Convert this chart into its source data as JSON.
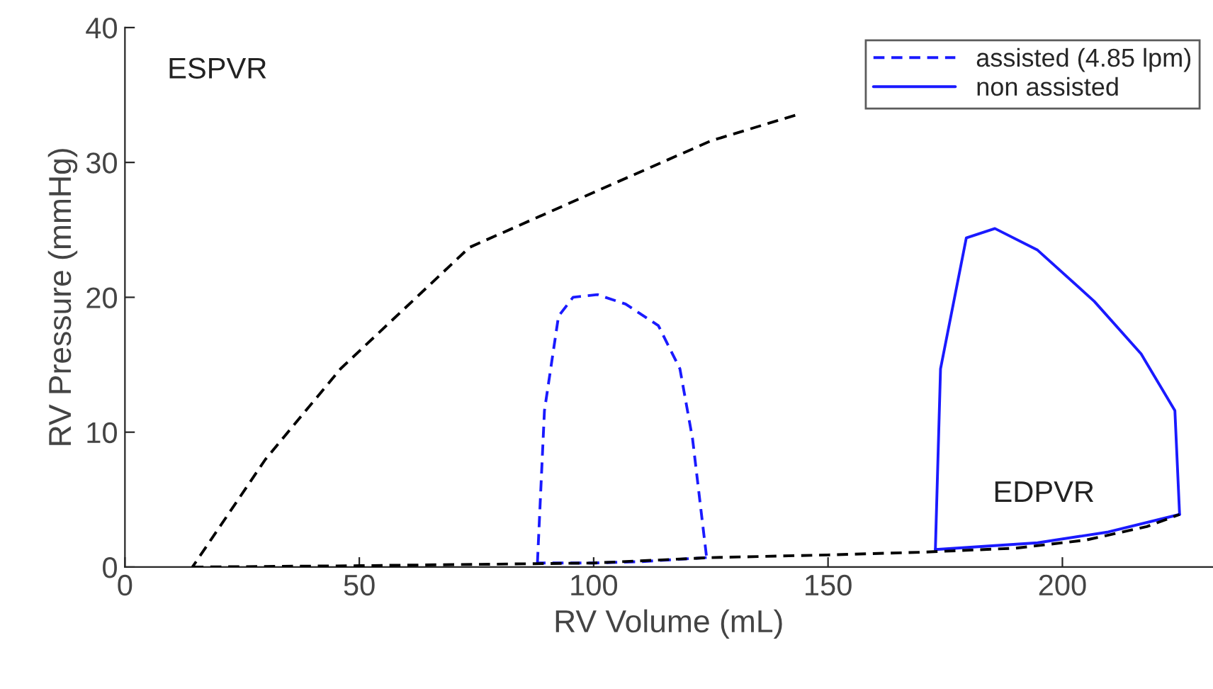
{
  "chart_data": {
    "type": "line",
    "xlabel": "RV Volume (mL)",
    "ylabel": "RV Pressure (mmHg)",
    "xlim": [
      0,
      232
    ],
    "ylim": [
      0,
      40
    ],
    "xticks": [
      0,
      50,
      100,
      150,
      200
    ],
    "yticks": [
      0,
      10,
      20,
      30,
      40
    ],
    "grid": false,
    "legend": "top right",
    "marker": "none",
    "annotations": [
      "ESPVR",
      "EDPVR"
    ],
    "series": [
      {
        "color": "#000000",
        "line_style": "dashed",
        "x": [
          143,
          125,
          100.8,
          73.5,
          46,
          30,
          14.4
        ],
        "values": [
          33.5,
          31.6,
          27.9,
          23.7,
          14.7,
          8,
          0
        ]
      },
      {
        "color": "#000000",
        "line_style": "dashed",
        "x": [
          14.4,
          50,
          100,
          125,
          150,
          170,
          190,
          205,
          218,
          225
        ],
        "values": [
          0,
          0.1,
          0.3,
          0.7,
          0.9,
          1.1,
          1.4,
          2,
          3,
          3.9
        ]
      },
      {
        "name": "assisted (4.85 lpm)",
        "color": "#1a1aff",
        "line_style": "dashed",
        "x": [
          88,
          89.5,
          92.5,
          95.6,
          100.8,
          106.8,
          113.8,
          118.4,
          121.1,
          122.9,
          124.1
        ],
        "values": [
          0.3,
          11.6,
          18.6,
          20,
          20.2,
          19.5,
          17.9,
          14.7,
          9.5,
          4.2,
          0.7
        ]
      },
      {
        "color": "#1a1aff",
        "line_style": "dashed",
        "x": [
          124.1,
          110,
          100,
          88
        ],
        "values": [
          0.7,
          0.4,
          0.3,
          0.3
        ]
      },
      {
        "name": "non assisted",
        "color": "#1a1aff",
        "line_style": "solid",
        "x": [
          172.9,
          174,
          179.5,
          185.6,
          194.7,
          206.8,
          216.8,
          224,
          225
        ],
        "values": [
          1.3,
          14.7,
          24.4,
          25.1,
          23.5,
          19.7,
          15.8,
          11.6,
          3.9
        ]
      },
      {
        "color": "#1a1aff",
        "line_style": "solid",
        "x": [
          225,
          209.8,
          194.7,
          172.9
        ],
        "values": [
          3.9,
          2.6,
          1.8,
          1.3
        ]
      }
    ]
  }
}
